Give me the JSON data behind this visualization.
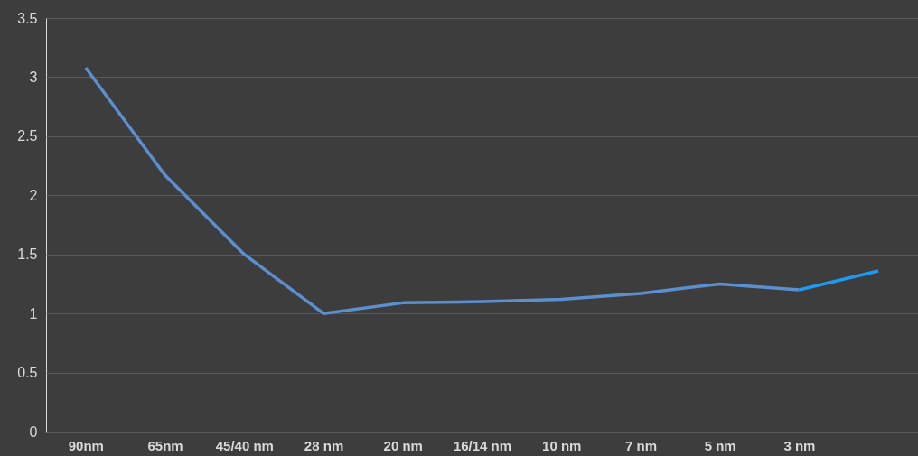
{
  "chart_data": {
    "type": "line",
    "categories": [
      "90nm",
      "65nm",
      "45/40 nm",
      "28 nm",
      "20 nm",
      "16/14 nm",
      "10 nm",
      "7 nm",
      "5 nm",
      "3 nm",
      null
    ],
    "series": [
      {
        "color": "#5b8fcf",
        "values": [
          3.08,
          2.17,
          1.5,
          1.0,
          1.09,
          1.1,
          1.12,
          1.17,
          1.25,
          1.2,
          null
        ]
      },
      {
        "color": "#1e9af0",
        "values": [
          null,
          null,
          null,
          null,
          null,
          null,
          null,
          null,
          null,
          1.2,
          1.36
        ]
      }
    ],
    "ylim": [
      0,
      3.5
    ],
    "yticks": [
      0,
      0.5,
      1,
      1.5,
      2,
      2.5,
      3,
      3.5
    ],
    "grid": "y",
    "marker": "none",
    "line_style": "solid"
  }
}
